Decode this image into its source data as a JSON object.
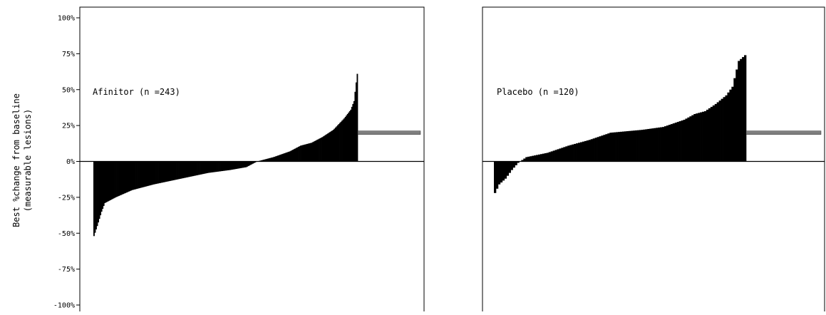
{
  "chart_data": {
    "type": "bar",
    "ylabel": [
      "Best %change from baseline",
      "(measurable lesions)"
    ],
    "ylim": [
      -100,
      100
    ],
    "yticks": [
      "100%",
      "75%",
      "50%",
      "25%",
      "0%",
      "-25%",
      "-50%",
      "-75%",
      "-100%"
    ],
    "ytick_values": [
      100,
      75,
      50,
      25,
      0,
      -25,
      -50,
      -75,
      -100
    ],
    "grid": false,
    "bar_color": "#000000",
    "marker_color": "#7f7f7f",
    "panels": [
      {
        "label": "Afinitor (n =243)",
        "n_bars": 243,
        "profile": [
          [
            0,
            -52
          ],
          [
            3,
            -45
          ],
          [
            7,
            -35
          ],
          [
            10,
            -29
          ],
          [
            20,
            -25
          ],
          [
            35,
            -20
          ],
          [
            55,
            -16
          ],
          [
            80,
            -12
          ],
          [
            105,
            -8
          ],
          [
            125,
            -6
          ],
          [
            140,
            -4
          ],
          [
            145,
            -2
          ],
          [
            150,
            0
          ],
          [
            165,
            3
          ],
          [
            180,
            7
          ],
          [
            190,
            11
          ],
          [
            200,
            13
          ],
          [
            210,
            17
          ],
          [
            220,
            22
          ],
          [
            230,
            30
          ],
          [
            236,
            36
          ],
          [
            239,
            42
          ],
          [
            241,
            55
          ],
          [
            242,
            61
          ]
        ],
        "no_lesion_marker_value": 20
      },
      {
        "label": "Placebo (n =120)",
        "n_bars": 120,
        "profile": [
          [
            0,
            -22
          ],
          [
            2,
            -16
          ],
          [
            5,
            -12
          ],
          [
            8,
            -6
          ],
          [
            11,
            -1
          ],
          [
            13,
            1
          ],
          [
            15,
            3
          ],
          [
            25,
            6
          ],
          [
            35,
            11
          ],
          [
            45,
            15
          ],
          [
            53,
            19
          ],
          [
            55,
            20
          ],
          [
            70,
            22
          ],
          [
            80,
            24
          ],
          [
            90,
            29
          ],
          [
            95,
            33
          ],
          [
            100,
            35
          ],
          [
            105,
            40
          ],
          [
            110,
            46
          ],
          [
            113,
            52
          ],
          [
            116,
            70
          ],
          [
            119,
            74
          ]
        ],
        "no_lesion_marker_value": 20
      }
    ]
  }
}
